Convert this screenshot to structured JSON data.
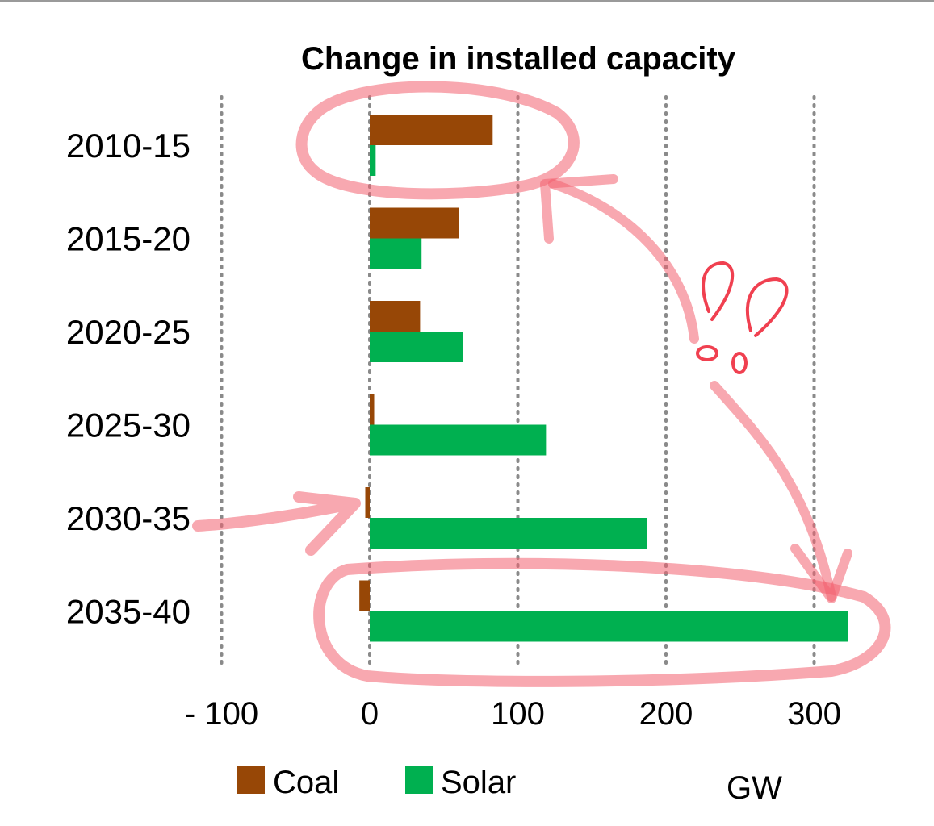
{
  "chart_data": {
    "type": "bar",
    "orientation": "horizontal",
    "title": "Change in installed capacity",
    "categories": [
      "2010-15",
      "2015-20",
      "2020-25",
      "2025-30",
      "2030-35",
      "2035-40"
    ],
    "series": [
      {
        "name": "Coal",
        "color": "#974706",
        "values": [
          83,
          60,
          34,
          3,
          -3,
          -7
        ]
      },
      {
        "name": "Solar",
        "color": "#00b050",
        "values": [
          4,
          35,
          63,
          119,
          187,
          323
        ]
      }
    ],
    "x_ticks": [
      {
        "value": -100,
        "label": "- 100"
      },
      {
        "value": 0,
        "label": "0"
      },
      {
        "value": 100,
        "label": "100"
      },
      {
        "value": 200,
        "label": "200"
      },
      {
        "value": 300,
        "label": "300"
      }
    ],
    "xlim": [
      -100,
      300
    ],
    "unit": "GW",
    "grid": "vertical dotted",
    "legend_position": "bottom"
  },
  "annotations": {
    "exclamations": "!!",
    "color": "#f05060"
  }
}
